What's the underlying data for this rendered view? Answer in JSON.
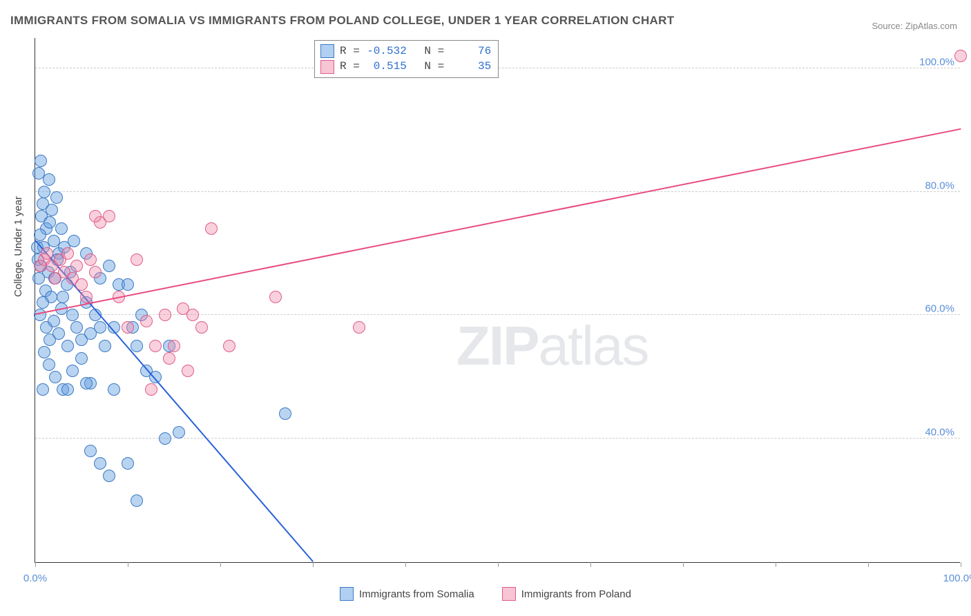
{
  "title": "IMMIGRANTS FROM SOMALIA VS IMMIGRANTS FROM POLAND COLLEGE, UNDER 1 YEAR CORRELATION CHART",
  "source_prefix": "Source: ",
  "source_text": "ZipAtlas.com",
  "y_axis_label": "College, Under 1 year",
  "watermark_bold": "ZIP",
  "watermark_rest": "atlas",
  "chart": {
    "xlim": [
      0,
      100
    ],
    "ylim": [
      20,
      105
    ],
    "x_ticks": [
      0,
      10,
      20,
      30,
      40,
      50,
      60,
      70,
      80,
      90,
      100
    ],
    "x_tick_labels": {
      "0": "0.0%",
      "100": "100.0%"
    },
    "y_gridlines": [
      40,
      60,
      80,
      100
    ],
    "y_tick_labels": {
      "40": "40.0%",
      "60": "60.0%",
      "80": "80.0%",
      "100": "100.0%"
    },
    "marker_radius": 9,
    "marker_border_width": 1.5,
    "background_color": "#ffffff",
    "grid_color": "#cccccc",
    "axis_color": "#333333",
    "colors": {
      "blue_fill": "rgba(100,160,225,0.45)",
      "blue_stroke": "#3b78c4",
      "blue_line": "#2962d9",
      "pink_fill": "rgba(240,140,170,0.40)",
      "pink_stroke": "#e05a8a",
      "pink_line": "#e84a80",
      "tick_text": "#5B8FD9"
    }
  },
  "series": {
    "blue": {
      "label": "Immigrants from Somalia",
      "R": "-0.532",
      "N": "76",
      "regression": {
        "x1": 0,
        "y1": 72,
        "x2": 30,
        "y2": 20
      },
      "points": [
        [
          0.2,
          71
        ],
        [
          0.4,
          83
        ],
        [
          0.6,
          85
        ],
        [
          0.8,
          78
        ],
        [
          1.0,
          80
        ],
        [
          1.2,
          74
        ],
        [
          0.3,
          69
        ],
        [
          0.5,
          73
        ],
        [
          0.7,
          76
        ],
        [
          1.5,
          82
        ],
        [
          1.8,
          77
        ],
        [
          2.0,
          72
        ],
        [
          2.3,
          79
        ],
        [
          2.5,
          70
        ],
        [
          0.4,
          66
        ],
        [
          0.6,
          68
        ],
        [
          0.9,
          71
        ],
        [
          1.1,
          64
        ],
        [
          1.4,
          67
        ],
        [
          1.7,
          63
        ],
        [
          2.1,
          66
        ],
        [
          2.4,
          69
        ],
        [
          2.8,
          61
        ],
        [
          3.1,
          71
        ],
        [
          3.4,
          65
        ],
        [
          3.8,
          67
        ],
        [
          0.5,
          60
        ],
        [
          0.8,
          62
        ],
        [
          1.2,
          58
        ],
        [
          1.6,
          56
        ],
        [
          2.0,
          59
        ],
        [
          2.5,
          57
        ],
        [
          3.0,
          63
        ],
        [
          3.5,
          55
        ],
        [
          4.0,
          60
        ],
        [
          4.5,
          58
        ],
        [
          5.0,
          56
        ],
        [
          5.5,
          62
        ],
        [
          6.0,
          57
        ],
        [
          6.5,
          60
        ],
        [
          7.0,
          66
        ],
        [
          7.5,
          55
        ],
        [
          8.0,
          68
        ],
        [
          8.5,
          58
        ],
        [
          9.0,
          65
        ],
        [
          1.0,
          54
        ],
        [
          1.5,
          52
        ],
        [
          2.2,
          50
        ],
        [
          3.0,
          48
        ],
        [
          4.0,
          51
        ],
        [
          5.0,
          53
        ],
        [
          6.0,
          49
        ],
        [
          7.0,
          58
        ],
        [
          0.8,
          48
        ],
        [
          3.5,
          48
        ],
        [
          5.5,
          49
        ],
        [
          8.5,
          48
        ],
        [
          10.0,
          65
        ],
        [
          10.5,
          58
        ],
        [
          11.0,
          55
        ],
        [
          11.5,
          60
        ],
        [
          12.0,
          51
        ],
        [
          7.0,
          36
        ],
        [
          6.0,
          38
        ],
        [
          8.0,
          34
        ],
        [
          10.0,
          36
        ],
        [
          11.0,
          30
        ],
        [
          14.0,
          40
        ],
        [
          15.5,
          41
        ],
        [
          13.0,
          50
        ],
        [
          14.5,
          55
        ],
        [
          27.0,
          44
        ],
        [
          5.5,
          70
        ],
        [
          4.2,
          72
        ],
        [
          2.8,
          74
        ],
        [
          1.6,
          75
        ]
      ]
    },
    "pink": {
      "label": "Immigrants from Poland",
      "R": "0.515",
      "N": "35",
      "regression": {
        "x1": 0,
        "y1": 60,
        "x2": 100,
        "y2": 90
      },
      "points": [
        [
          0.5,
          68
        ],
        [
          1.0,
          69
        ],
        [
          1.3,
          70
        ],
        [
          1.8,
          68
        ],
        [
          2.2,
          66
        ],
        [
          2.7,
          69
        ],
        [
          3.1,
          67
        ],
        [
          3.5,
          70
        ],
        [
          4.0,
          66
        ],
        [
          4.5,
          68
        ],
        [
          5.0,
          65
        ],
        [
          5.5,
          63
        ],
        [
          6.0,
          69
        ],
        [
          6.5,
          67
        ],
        [
          7.0,
          75
        ],
        [
          8.0,
          76
        ],
        [
          9.0,
          63
        ],
        [
          10.0,
          58
        ],
        [
          11.0,
          69
        ],
        [
          12.0,
          59
        ],
        [
          13.0,
          55
        ],
        [
          14.0,
          60
        ],
        [
          15.0,
          55
        ],
        [
          16.0,
          61
        ],
        [
          17.0,
          60
        ],
        [
          18.0,
          58
        ],
        [
          19.0,
          74
        ],
        [
          21.0,
          55
        ],
        [
          12.5,
          48
        ],
        [
          14.5,
          53
        ],
        [
          16.5,
          51
        ],
        [
          26.0,
          63
        ],
        [
          35.0,
          58
        ],
        [
          100.0,
          102
        ],
        [
          6.5,
          76
        ]
      ]
    }
  },
  "stats_legend": {
    "r_label": "R =",
    "n_label": "N ="
  }
}
